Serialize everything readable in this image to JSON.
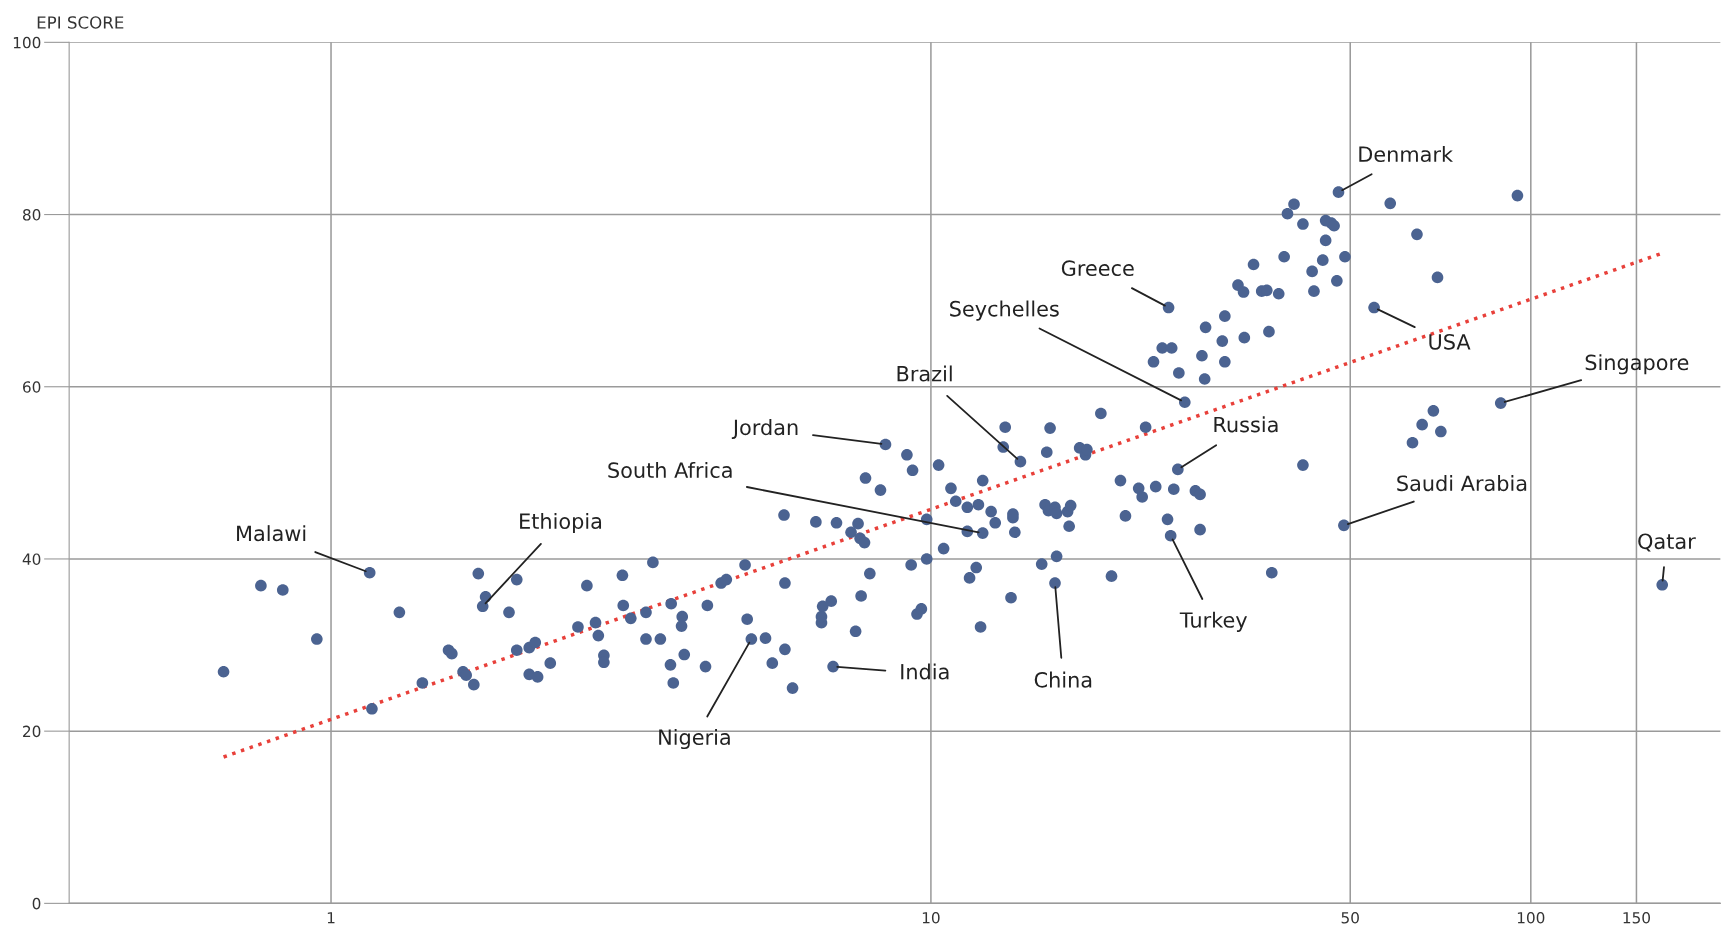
{
  "chart_data": {
    "type": "scatter",
    "ylabel": "EPI SCORE",
    "log": "x",
    "grid": true,
    "marker": "circle",
    "xlim": [
      0.366,
      207
    ],
    "ylim": [
      0,
      100
    ],
    "xticks": [
      1,
      10,
      50,
      100,
      150
    ],
    "yticks": [
      0,
      20,
      40,
      60,
      80,
      100
    ],
    "series": [
      {
        "color": "#4b6391",
        "x": [
          0.662,
          0.764,
          0.831,
          0.947,
          1.16,
          1.17,
          1.3,
          1.42,
          1.57,
          1.59,
          1.66,
          1.68,
          1.73,
          1.76,
          1.81,
          1.79,
          1.98,
          2.04,
          2.04,
          2.14,
          2.19,
          2.14,
          2.21,
          2.32,
          2.58,
          2.67,
          2.76,
          2.79,
          2.85,
          2.85,
          3.06,
          3.07,
          3.16,
          3.35,
          3.35,
          3.44,
          3.54,
          3.69,
          3.68,
          3.72,
          3.85,
          3.84,
          3.88,
          4.21,
          4.24,
          4.47,
          4.56,
          4.9,
          4.94,
          5.02,
          5.3,
          5.44,
          5.69,
          5.71,
          5.71,
          5.88,
          6.43,
          6.57,
          6.57,
          6.6,
          6.82,
          6.87,
          6.96,
          7.36,
          7.49,
          7.56,
          7.62,
          7.75,
          7.65,
          7.78,
          7.91,
          8.24,
          8.4,
          9.12,
          9.27,
          9.32,
          9.48,
          9.64,
          9.84,
          9.84,
          10.3,
          10.5,
          10.8,
          11.0,
          11.5,
          11.5,
          11.6,
          11.9,
          12.1,
          12.0,
          12.2,
          12.2,
          12.6,
          12.8,
          13.2,
          13.3,
          14.1,
          13.6,
          13.7,
          13.8,
          13.7,
          15.3,
          15.5,
          15.8,
          15.6,
          15.7,
          16.1,
          16.2,
          16.2,
          16.1,
          16.9,
          17.1,
          17.0,
          17.7,
          18.1,
          18.2,
          19.2,
          20.0,
          20.7,
          21.1,
          22.2,
          22.5,
          23.7,
          22.8,
          26.5,
          23.5,
          24.3,
          25.2,
          24.9,
          24.8,
          25.1,
          25.4,
          25.9,
          25.8,
          28.1,
          27.6,
          28.1,
          28.6,
          28.3,
          28.7,
          30.6,
          30.9,
          30.9,
          32.5,
          33.2,
          33.3,
          34.5,
          35.6,
          36.3,
          36.6,
          37.0,
          38.0,
          38.8,
          39.3,
          40.3,
          41.7,
          41.7,
          43.2,
          43.5,
          45.0,
          45.5,
          46.5,
          45.5,
          47.0,
          47.5,
          47.8,
          48.8,
          49.0,
          54.8,
          58.3,
          63.5,
          64.6,
          65.9,
          68.8,
          69.9,
          70.8,
          89.1,
          95.0,
          165.6
        ],
        "values": [
          26.9,
          36.9,
          36.4,
          30.7,
          38.4,
          22.6,
          33.8,
          25.6,
          29.4,
          29.0,
          26.9,
          26.5,
          25.4,
          38.3,
          35.6,
          34.5,
          33.8,
          37.6,
          29.4,
          29.7,
          30.3,
          26.6,
          26.3,
          27.9,
          32.1,
          36.9,
          32.6,
          31.1,
          28.8,
          28.0,
          38.1,
          34.6,
          33.1,
          33.8,
          30.7,
          39.6,
          30.7,
          34.8,
          27.7,
          25.6,
          33.3,
          32.2,
          28.9,
          27.5,
          34.6,
          37.2,
          37.6,
          39.3,
          33.0,
          30.7,
          30.8,
          27.9,
          45.1,
          37.2,
          29.5,
          25.0,
          44.3,
          32.6,
          33.3,
          34.5,
          35.1,
          27.5,
          44.2,
          43.1,
          31.6,
          44.1,
          42.4,
          41.9,
          35.7,
          49.4,
          38.3,
          48.0,
          53.3,
          52.1,
          39.3,
          50.3,
          33.6,
          34.2,
          40.0,
          44.6,
          50.9,
          41.2,
          48.2,
          46.7,
          46.0,
          43.2,
          37.8,
          39.0,
          32.1,
          46.3,
          43.0,
          49.1,
          45.5,
          44.2,
          53.0,
          55.3,
          51.3,
          35.5,
          44.8,
          43.1,
          45.2,
          39.4,
          46.3,
          55.2,
          52.4,
          45.6,
          46.0,
          45.3,
          40.3,
          37.2,
          45.5,
          46.2,
          43.8,
          52.9,
          52.1,
          52.7,
          56.9,
          38.0,
          49.1,
          45.0,
          48.2,
          47.2,
          48.4,
          55.3,
          58.2,
          62.9,
          64.5,
          64.5,
          69.2,
          44.6,
          42.7,
          48.1,
          61.6,
          50.4,
          43.4,
          47.9,
          47.5,
          60.9,
          63.6,
          66.9,
          65.3,
          62.9,
          68.2,
          71.8,
          71.0,
          65.7,
          74.2,
          71.1,
          71.2,
          66.4,
          38.4,
          70.8,
          75.1,
          80.1,
          81.2,
          78.9,
          50.9,
          73.4,
          71.1,
          74.7,
          77.0,
          79.0,
          79.3,
          78.7,
          72.3,
          82.6,
          43.9,
          75.1,
          69.2,
          81.3,
          53.5,
          77.7,
          55.6,
          57.2,
          72.7,
          54.8,
          58.1,
          82.2,
          37.0
        ]
      },
      {
        "type": "line",
        "marker": "none",
        "color": "#e8403a",
        "line_style": "dotted",
        "x": [
          0.662,
          167
        ],
        "values": [
          17.0,
          75.6
        ]
      }
    ],
    "annotations": [
      {
        "text": "Denmark",
        "x": 47.8,
        "y": 82.6
      },
      {
        "text": "Greece",
        "x": 24.9,
        "y": 69.2
      },
      {
        "text": "Seychelles",
        "x": 26.5,
        "y": 58.2
      },
      {
        "text": "Brazil",
        "x": 14.1,
        "y": 51.3
      },
      {
        "text": "USA",
        "x": 54.8,
        "y": 69.2
      },
      {
        "text": "Singapore",
        "x": 89.1,
        "y": 58.1
      },
      {
        "text": "Jordan",
        "x": 8.4,
        "y": 53.3
      },
      {
        "text": "Russia",
        "x": 25.8,
        "y": 50.4
      },
      {
        "text": "South Africa",
        "x": 12.2,
        "y": 43.0
      },
      {
        "text": "Saudi Arabia",
        "x": 48.8,
        "y": 43.9
      },
      {
        "text": "Malawi",
        "x": 1.16,
        "y": 38.4
      },
      {
        "text": "Ethiopia",
        "x": 1.79,
        "y": 34.5
      },
      {
        "text": "Qatar",
        "x": 165.6,
        "y": 37.0
      },
      {
        "text": "Turkey",
        "x": 25.1,
        "y": 42.7
      },
      {
        "text": "China",
        "x": 16.1,
        "y": 37.2
      },
      {
        "text": "India",
        "x": 6.87,
        "y": 27.5
      },
      {
        "text": "Nigeria",
        "x": 5.02,
        "y": 30.7
      }
    ]
  }
}
